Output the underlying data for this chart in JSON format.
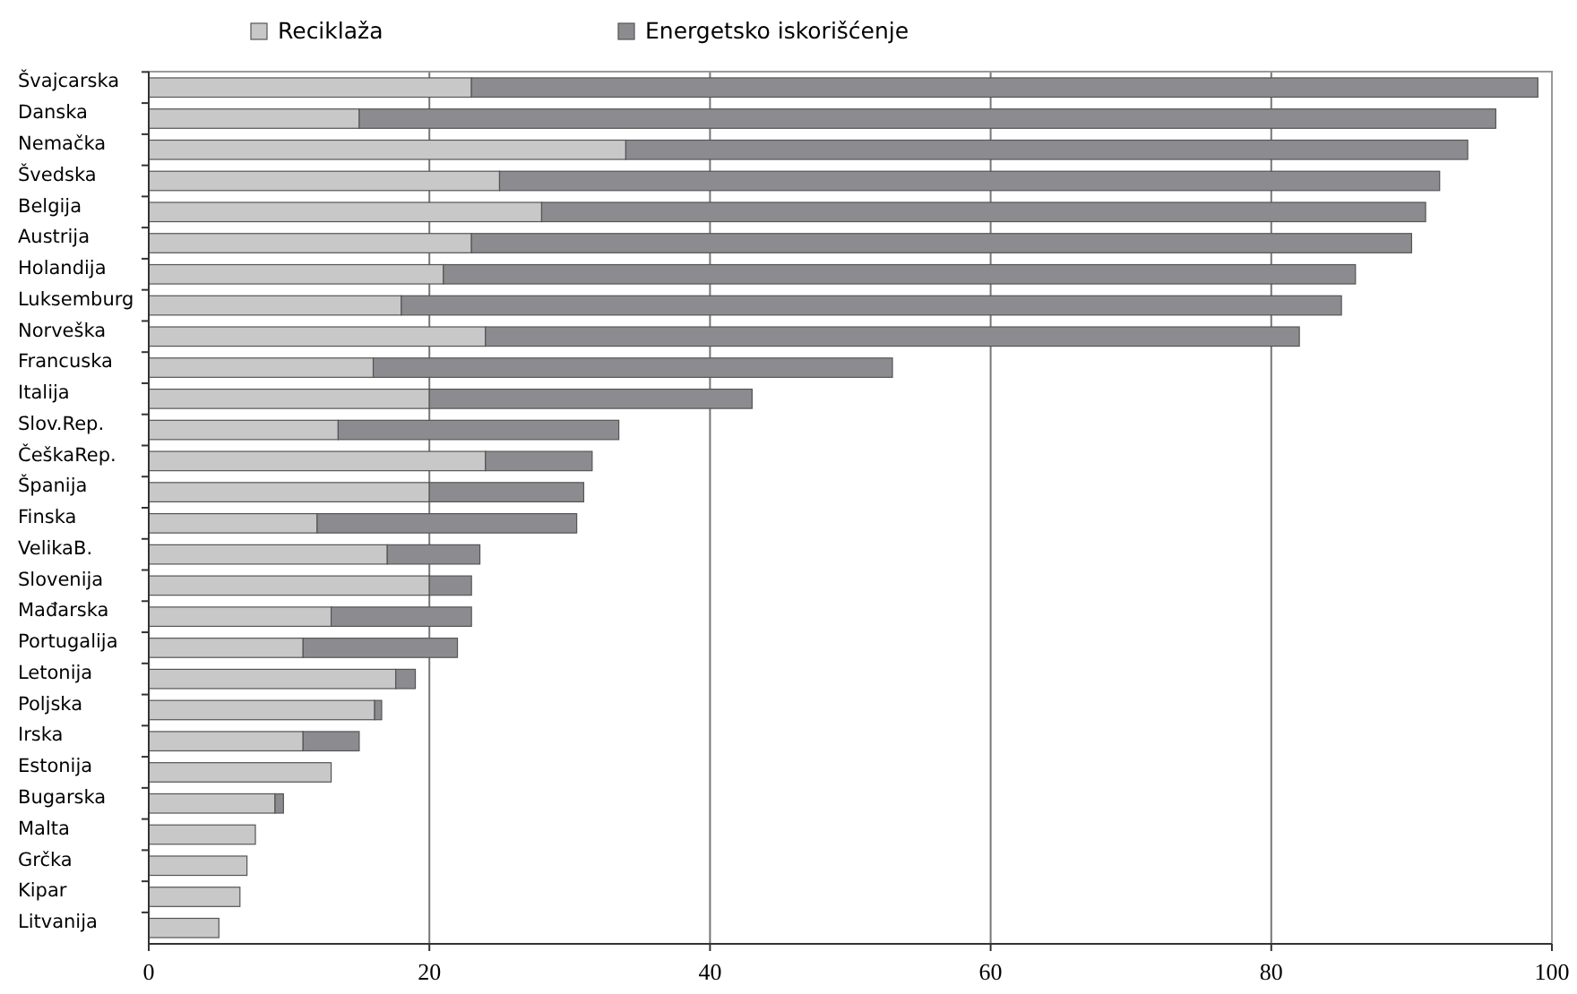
{
  "chart_data": {
    "type": "bar",
    "orientation": "horizontal",
    "stacked": true,
    "categories": [
      "Švajcarska",
      "Danska",
      "Nemačka",
      "Švedska",
      "Belgija",
      "Austrija",
      "Holandija",
      "Luksemburg",
      "Norveška",
      "Francuska",
      "Italija",
      "Slov.Rep.",
      "ČeškaRep.",
      "Španija",
      "Finska",
      "VelikaB.",
      "Slovenija",
      "Mađarska",
      "Portugalija",
      "Letonija",
      "Poljska",
      "Irska",
      "Estonija",
      "Bugarska",
      "Malta",
      "Grčka",
      "Kipar",
      "Litvanija"
    ],
    "series": [
      {
        "name": "Reciklaža",
        "color": "#c8c8c8",
        "values": [
          23,
          15,
          34,
          25,
          28,
          23,
          21,
          18,
          24,
          16,
          20,
          13.5,
          24,
          20,
          12,
          17,
          20,
          13,
          11,
          17.6,
          16.1,
          11,
          13,
          9,
          7.6,
          7,
          6.5,
          5
        ]
      },
      {
        "name": "Energetsko iskorišćenje",
        "color": "#8c8c90",
        "values": [
          76,
          81,
          60,
          67,
          63,
          67,
          65,
          67,
          58,
          37,
          23,
          20,
          7.6,
          11,
          18.5,
          6.6,
          3,
          10,
          11,
          1.4,
          0.5,
          4,
          0,
          0.6,
          0,
          0,
          0,
          0
        ]
      }
    ],
    "xlim": [
      0,
      100
    ],
    "xticks": [
      0,
      20,
      40,
      60,
      80,
      100
    ],
    "grid": "x",
    "legend": "top"
  }
}
